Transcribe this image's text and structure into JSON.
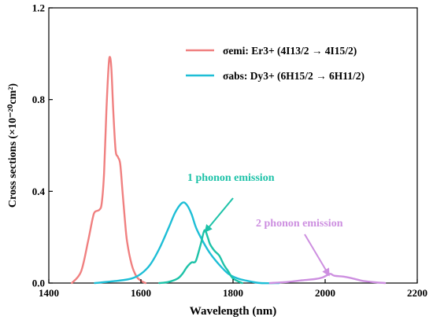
{
  "chart_data": {
    "type": "line",
    "xlabel": "Wavelength (nm)",
    "ylabel": "Cross sections (×10⁻²⁰cm²)",
    "xlim": [
      1400,
      2200
    ],
    "ylim": [
      0,
      1.2
    ],
    "x_ticks": [
      "1400",
      "1600",
      "1800",
      "2000",
      "2200"
    ],
    "y_ticks": [
      "0.0",
      "0.4",
      "0.8",
      "1.2"
    ],
    "x_tick_values": [
      1400,
      1600,
      1800,
      2000,
      2200
    ],
    "y_tick_values": [
      0,
      0.4,
      0.8,
      1.2
    ],
    "grid": false,
    "legend_position": "top-right",
    "series": [
      {
        "name": "σemi: Er3+ (4I13/2 → 4I15/2)",
        "color": "#f08080",
        "x": [
          1450,
          1470,
          1485,
          1495,
          1500,
          1510,
          1515,
          1520,
          1525,
          1530,
          1533,
          1536,
          1540,
          1545,
          1550,
          1555,
          1560,
          1565,
          1570,
          1580,
          1590,
          1600,
          1610
        ],
        "y": [
          0.0,
          0.05,
          0.18,
          0.28,
          0.31,
          0.32,
          0.35,
          0.48,
          0.75,
          0.95,
          0.985,
          0.93,
          0.75,
          0.58,
          0.55,
          0.52,
          0.4,
          0.28,
          0.18,
          0.08,
          0.03,
          0.01,
          0.0
        ]
      },
      {
        "name": "σabs: Dy3+ (6H15/2 → 6H11/2)",
        "color": "#1ebed6",
        "x": [
          1500,
          1550,
          1580,
          1600,
          1620,
          1640,
          1660,
          1675,
          1690,
          1700,
          1710,
          1720,
          1735,
          1750,
          1770,
          1790,
          1810,
          1830,
          1860,
          1900
        ],
        "y": [
          0.0,
          0.01,
          0.02,
          0.04,
          0.08,
          0.15,
          0.24,
          0.31,
          0.35,
          0.34,
          0.3,
          0.24,
          0.18,
          0.13,
          0.08,
          0.04,
          0.02,
          0.01,
          0.0,
          0.0
        ]
      },
      {
        "name": "1 phonon emission",
        "color": "#1dc2a8",
        "x": [
          1640,
          1660,
          1680,
          1690,
          1700,
          1710,
          1715,
          1720,
          1730,
          1738,
          1745,
          1750,
          1760,
          1770,
          1780,
          1790,
          1800,
          1820
        ],
        "y": [
          0.0,
          0.005,
          0.02,
          0.04,
          0.07,
          0.09,
          0.09,
          0.1,
          0.17,
          0.23,
          0.2,
          0.17,
          0.14,
          0.12,
          0.08,
          0.05,
          0.02,
          0.0
        ]
      },
      {
        "name": "2 phonon emission",
        "color": "#cd8fe0",
        "x": [
          1880,
          1920,
          1950,
          1980,
          1995,
          2005,
          2012,
          2020,
          2040,
          2060,
          2080,
          2100,
          2130
        ],
        "y": [
          0.0,
          0.005,
          0.012,
          0.018,
          0.025,
          0.035,
          0.04,
          0.032,
          0.028,
          0.02,
          0.01,
          0.005,
          0.0
        ]
      }
    ],
    "legend": [
      {
        "label": "σemi: Er3+ (4I13/2 → 4I15/2)",
        "color": "#f08080"
      },
      {
        "label": "σabs: Dy3+ (6H15/2 → 6H11/2)",
        "color": "#1ebed6"
      }
    ],
    "annotations": [
      {
        "text": "1 phonon emission",
        "color": "#1dc2a8",
        "arrow_to": [
          1740,
          0.225
        ]
      },
      {
        "text": "2 phonon emission",
        "color": "#cd8fe0",
        "arrow_to": [
          2008,
          0.035
        ]
      }
    ]
  }
}
